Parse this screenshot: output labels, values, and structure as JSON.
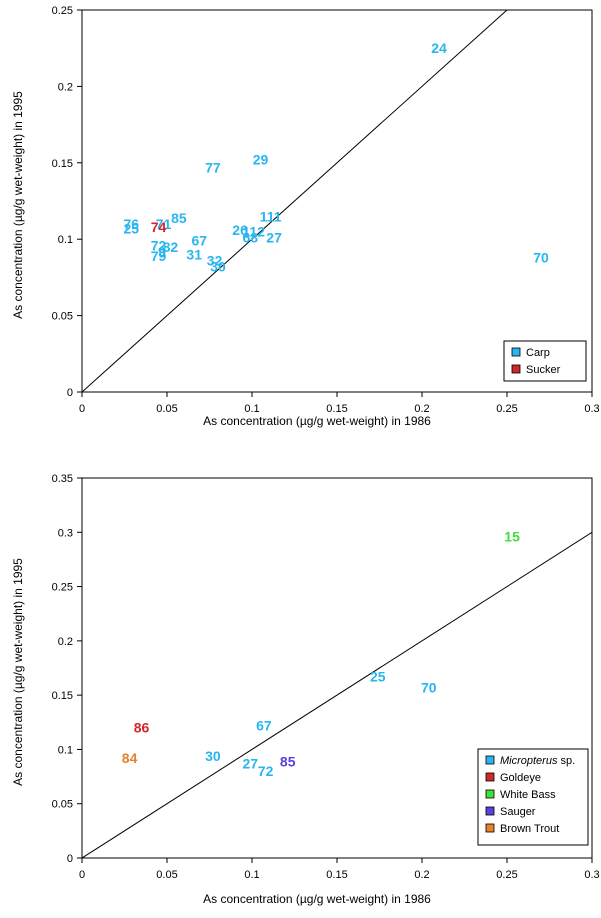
{
  "chart_data": [
    {
      "type": "scatter",
      "xlabel": "As concentration (µg/g wet-weight) in 1986",
      "ylabel": "As concentration (µg/g wet-weight) in 1995",
      "xlim": [
        0,
        0.3
      ],
      "ylim": [
        0,
        0.25
      ],
      "xticks": [
        "0",
        "0.05",
        "0.1",
        "0.15",
        "0.2",
        "0.25",
        "0.3"
      ],
      "yticks": [
        "0",
        "0.05",
        "0.1",
        "0.15",
        "0.2",
        "0.25"
      ],
      "reference_line": "1:1",
      "legend_position": "bottom-right",
      "series": [
        {
          "name": "Carp",
          "color": "#29b6f0",
          "points": [
            {
              "label": "24",
              "x": 0.21,
              "y": 0.225
            },
            {
              "label": "70",
              "x": 0.27,
              "y": 0.088
            },
            {
              "label": "77",
              "x": 0.077,
              "y": 0.147
            },
            {
              "label": "29",
              "x": 0.105,
              "y": 0.152
            },
            {
              "label": "76",
              "x": 0.029,
              "y": 0.11
            },
            {
              "label": "25",
              "x": 0.029,
              "y": 0.107
            },
            {
              "label": "71",
              "x": 0.048,
              "y": 0.11
            },
            {
              "label": "85",
              "x": 0.057,
              "y": 0.114
            },
            {
              "label": "111",
              "x": 0.111,
              "y": 0.115
            },
            {
              "label": "26",
              "x": 0.093,
              "y": 0.106
            },
            {
              "label": "112",
              "x": 0.101,
              "y": 0.105
            },
            {
              "label": "68",
              "x": 0.099,
              "y": 0.101
            },
            {
              "label": "27",
              "x": 0.113,
              "y": 0.101
            },
            {
              "label": "67",
              "x": 0.069,
              "y": 0.099
            },
            {
              "label": "72",
              "x": 0.045,
              "y": 0.096
            },
            {
              "label": "82",
              "x": 0.052,
              "y": 0.095
            },
            {
              "label": "9",
              "x": 0.047,
              "y": 0.092
            },
            {
              "label": "79",
              "x": 0.045,
              "y": 0.089
            },
            {
              "label": "31",
              "x": 0.066,
              "y": 0.09
            },
            {
              "label": "32",
              "x": 0.078,
              "y": 0.086
            },
            {
              "label": "30",
              "x": 0.08,
              "y": 0.082
            }
          ]
        },
        {
          "name": "Sucker",
          "color": "#d0272b",
          "points": [
            {
              "label": "74",
              "x": 0.045,
              "y": 0.108
            }
          ]
        }
      ]
    },
    {
      "type": "scatter",
      "xlabel": "As concentration (µg/g wet-weight) in 1986",
      "ylabel": "As concentration (µg/g wet-weight) in 1995",
      "xlim": [
        0,
        0.3
      ],
      "ylim": [
        0,
        0.35
      ],
      "xticks": [
        "0",
        "0.05",
        "0.1",
        "0.15",
        "0.2",
        "0.25",
        "0.3"
      ],
      "yticks": [
        "0",
        "0.05",
        "0.1",
        "0.15",
        "0.2",
        "0.25",
        "0.3",
        "0.35"
      ],
      "reference_line": "1:1",
      "legend_position": "bottom-right",
      "series": [
        {
          "name": "Micropterus",
          "name_suffix": " sp.",
          "color": "#29b6f0",
          "points": [
            {
              "label": "25",
              "x": 0.174,
              "y": 0.167
            },
            {
              "label": "70",
              "x": 0.204,
              "y": 0.157
            },
            {
              "label": "67",
              "x": 0.107,
              "y": 0.122
            },
            {
              "label": "30",
              "x": 0.077,
              "y": 0.094
            },
            {
              "label": "27",
              "x": 0.099,
              "y": 0.087
            },
            {
              "label": "72",
              "x": 0.108,
              "y": 0.08
            }
          ]
        },
        {
          "name": "Goldeye",
          "color": "#d0272b",
          "points": [
            {
              "label": "86",
              "x": 0.035,
              "y": 0.12
            }
          ]
        },
        {
          "name": "White Bass",
          "color": "#3fe03a",
          "points": [
            {
              "label": "15",
              "x": 0.253,
              "y": 0.296
            }
          ]
        },
        {
          "name": "Sauger",
          "color": "#5b3fe0",
          "points": [
            {
              "label": "85",
              "x": 0.121,
              "y": 0.089
            }
          ]
        },
        {
          "name": "Brown Trout",
          "color": "#e8822a",
          "points": [
            {
              "label": "84",
              "x": 0.028,
              "y": 0.092
            }
          ]
        }
      ]
    }
  ]
}
